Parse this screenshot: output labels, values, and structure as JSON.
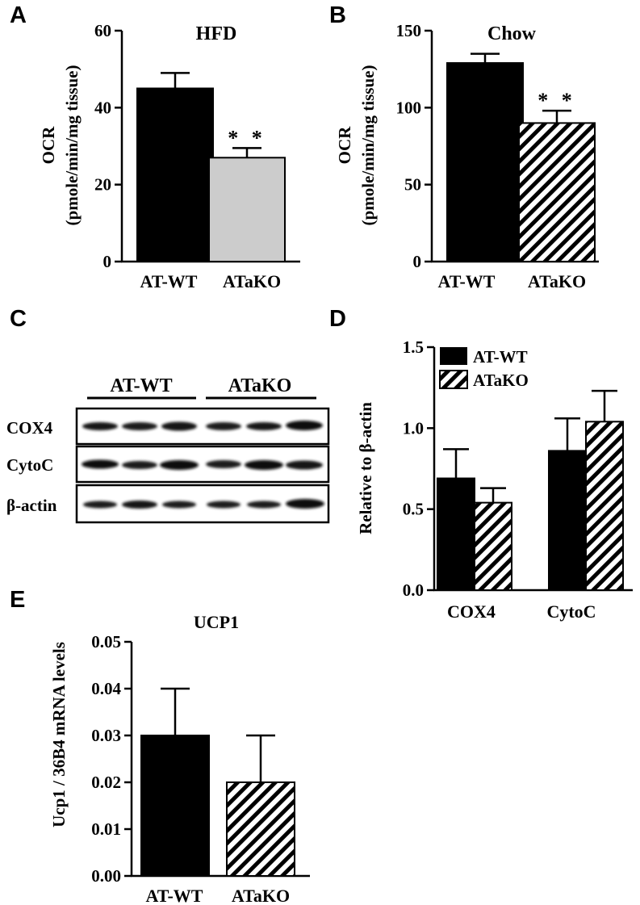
{
  "panels": {
    "A": "A",
    "B": "B",
    "C": "C",
    "D": "D",
    "E": "E"
  },
  "colors": {
    "wt": "#000000",
    "ko_gray": "#cccccc",
    "ko_hatch": "#000000",
    "background": "#ffffff"
  },
  "western_blot": {
    "groups": [
      "AT-WT",
      "ATaKO"
    ],
    "rows": [
      "COX4",
      "CytoC",
      "β-actin"
    ]
  },
  "chart_data": [
    {
      "id": "A",
      "type": "bar",
      "title": "HFD",
      "ylabel_line1": "OCR",
      "ylabel_line2": "(pmole/min/mg tissue)",
      "categories": [
        "AT-WT",
        "ATaKO"
      ],
      "values": [
        45,
        27
      ],
      "errors": [
        4,
        2.5
      ],
      "fills": [
        "solid",
        "gray"
      ],
      "significance": [
        null,
        "**"
      ],
      "ylim": [
        0,
        60
      ],
      "yticks": [
        "0",
        "20",
        "40",
        "60"
      ],
      "ytick_values": [
        0,
        20,
        40,
        60
      ]
    },
    {
      "id": "B",
      "type": "bar",
      "title": "Chow",
      "ylabel_line1": "OCR",
      "ylabel_line2": "(pmole/min/mg tissue)",
      "categories": [
        "AT-WT",
        "ATaKO"
      ],
      "values": [
        129,
        90
      ],
      "errors": [
        6,
        8
      ],
      "fills": [
        "solid",
        "hatch"
      ],
      "significance": [
        null,
        "**"
      ],
      "ylim": [
        0,
        150
      ],
      "yticks": [
        "0",
        "50",
        "100",
        "150"
      ],
      "ytick_values": [
        0,
        50,
        100,
        150
      ]
    },
    {
      "id": "D",
      "type": "bar",
      "title": "",
      "ylabel": "Relative to β-actin",
      "categories": [
        "COX4",
        "CytoC"
      ],
      "series": [
        {
          "name": "AT-WT",
          "fill": "solid",
          "values": [
            0.69,
            0.86
          ],
          "errors": [
            0.18,
            0.2
          ]
        },
        {
          "name": "ATaKO",
          "fill": "hatch",
          "values": [
            0.54,
            1.04
          ],
          "errors": [
            0.09,
            0.19
          ]
        }
      ],
      "legend": "top-left",
      "ylim": [
        0,
        1.5
      ],
      "yticks": [
        "0.0",
        "0.5",
        "1.0",
        "1.5"
      ],
      "ytick_values": [
        0,
        0.5,
        1.0,
        1.5
      ]
    },
    {
      "id": "E",
      "type": "bar",
      "title": "UCP1",
      "ylabel": "Ucp1 / 36B4 mRNA levels",
      "categories": [
        "AT-WT",
        "ATaKO"
      ],
      "values": [
        0.03,
        0.02
      ],
      "errors": [
        0.01,
        0.01
      ],
      "fills": [
        "solid",
        "hatch"
      ],
      "ylim": [
        0,
        0.05
      ],
      "yticks": [
        "0.00",
        "0.01",
        "0.02",
        "0.03",
        "0.04",
        "0.05"
      ],
      "ytick_values": [
        0,
        0.01,
        0.02,
        0.03,
        0.04,
        0.05
      ]
    }
  ]
}
